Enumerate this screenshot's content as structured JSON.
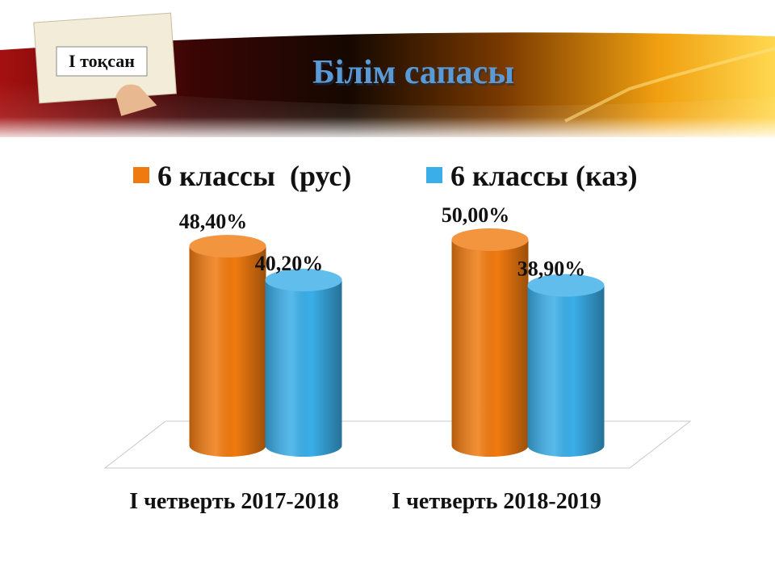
{
  "header": {
    "badge": "I тоқсан",
    "title": "Білім сапасы"
  },
  "chart_data": {
    "type": "bar",
    "categories": [
      "I четверть 2017-2018",
      "I четверть 2018-2019"
    ],
    "series": [
      {
        "name": "6 классы  (рус)",
        "color": "#f07a10",
        "values": [
          48.4,
          50.0
        ],
        "value_labels": [
          "48,40%",
          "50,00%"
        ]
      },
      {
        "name": "6 классы (каз)",
        "color": "#3aaee8",
        "values": [
          40.2,
          38.9
        ],
        "value_labels": [
          "40,20%",
          "38,90%"
        ]
      }
    ]
  }
}
